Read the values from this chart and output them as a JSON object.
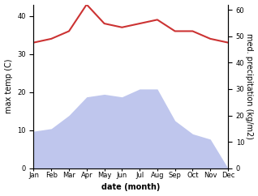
{
  "months": [
    "Jan",
    "Feb",
    "Mar",
    "Apr",
    "May",
    "Jun",
    "Jul",
    "Aug",
    "Sep",
    "Oct",
    "Nov",
    "Dec"
  ],
  "x": [
    1,
    2,
    3,
    4,
    5,
    6,
    7,
    8,
    9,
    10,
    11,
    12
  ],
  "precipitation": [
    14,
    15,
    20,
    27,
    28,
    27,
    30,
    30,
    18,
    13,
    11,
    0
  ],
  "temperature": [
    33,
    34,
    36,
    43,
    38,
    37,
    38,
    39,
    36,
    36,
    34,
    33
  ],
  "temp_ylim": [
    0,
    43
  ],
  "temp_yticks": [
    0,
    10,
    20,
    30,
    40
  ],
  "precip_ylim": [
    0,
    62
  ],
  "precip_yticks": [
    0,
    10,
    20,
    30,
    40,
    50,
    60
  ],
  "fill_color": "#aab4e8",
  "fill_alpha": 0.75,
  "line_color": "#cc3333",
  "xlabel": "date (month)",
  "ylabel_left": "max temp (C)",
  "ylabel_right": "med. precipitation (kg/m2)",
  "bg_color": "#ffffff",
  "label_fontsize": 7,
  "tick_fontsize": 6,
  "line_width": 1.5
}
